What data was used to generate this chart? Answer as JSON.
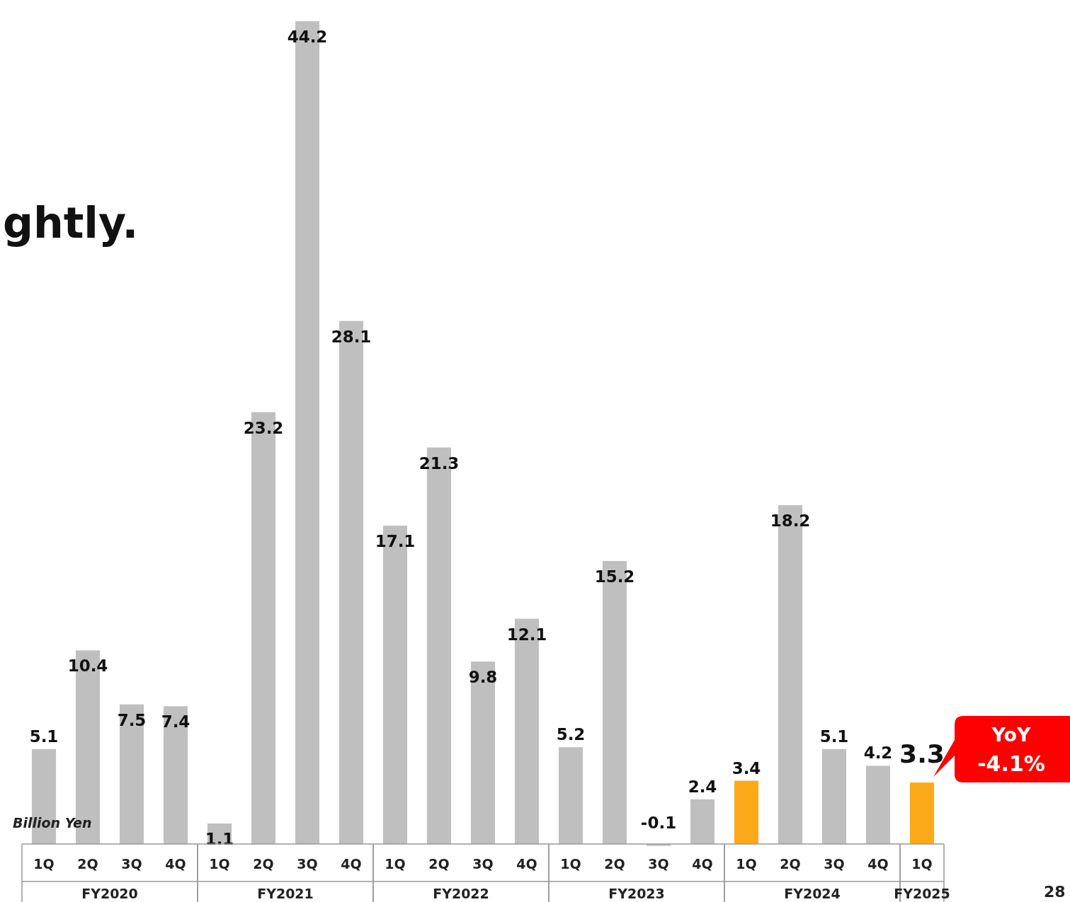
{
  "chart_data": {
    "type": "bar",
    "ylabel": "Billion Yen",
    "categories": [
      "1Q",
      "2Q",
      "3Q",
      "4Q",
      "1Q",
      "2Q",
      "3Q",
      "4Q",
      "1Q",
      "2Q",
      "3Q",
      "4Q",
      "1Q",
      "2Q",
      "3Q",
      "4Q",
      "1Q",
      "2Q",
      "3Q",
      "4Q",
      "1Q"
    ],
    "values": [
      5.1,
      10.4,
      7.5,
      7.4,
      1.1,
      23.2,
      44.2,
      28.1,
      17.1,
      21.3,
      9.8,
      12.1,
      5.2,
      15.2,
      -0.1,
      2.4,
      3.4,
      18.2,
      5.1,
      4.2,
      3.3
    ],
    "colors": [
      "#bfbfbf",
      "#bfbfbf",
      "#bfbfbf",
      "#bfbfbf",
      "#bfbfbf",
      "#bfbfbf",
      "#bfbfbf",
      "#bfbfbf",
      "#bfbfbf",
      "#bfbfbf",
      "#bfbfbf",
      "#bfbfbf",
      "#bfbfbf",
      "#bfbfbf",
      "#bfbfbf",
      "#bfbfbf",
      "#fca919",
      "#bfbfbf",
      "#bfbfbf",
      "#bfbfbf",
      "#fca919"
    ],
    "data_labels": true,
    "annotations": [
      "ghtly.",
      "FY2020",
      "FY2021",
      "FY2022",
      "FY2023",
      "FY2024",
      "FY2025",
      "YoY -4.1%",
      "28"
    ]
  }
}
